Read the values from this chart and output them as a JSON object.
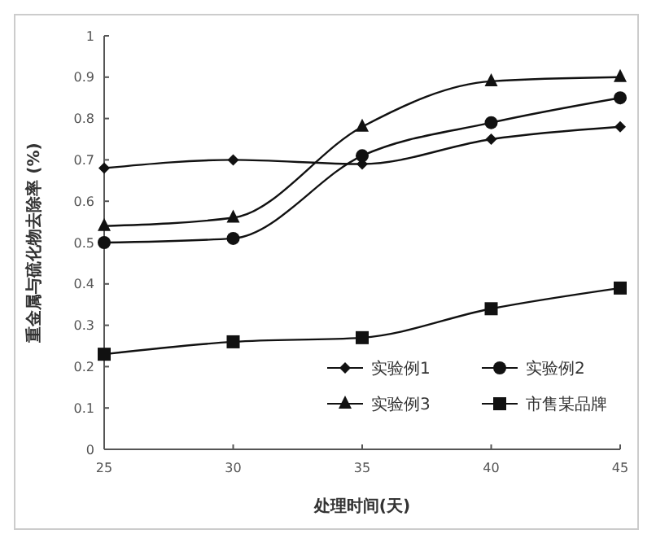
{
  "chart_data": {
    "type": "line",
    "xlabel": "处理时间(天)",
    "ylabel": "重金属与硫化物去除率 (%)",
    "x": [
      25,
      30,
      35,
      40,
      45
    ],
    "series": [
      {
        "name": "实验例1",
        "color": "#111111",
        "marker": "diamond",
        "values": [
          0.68,
          0.7,
          0.69,
          0.75,
          0.78
        ]
      },
      {
        "name": "实验例2",
        "color": "#111111",
        "marker": "circle",
        "values": [
          0.5,
          0.51,
          0.71,
          0.79,
          0.85
        ]
      },
      {
        "name": "实验例3",
        "color": "#111111",
        "marker": "triangle",
        "values": [
          0.54,
          0.56,
          0.78,
          0.89,
          0.9
        ]
      },
      {
        "name": "市售某品牌",
        "color": "#111111",
        "marker": "square",
        "values": [
          0.23,
          0.26,
          0.27,
          0.34,
          0.39
        ]
      }
    ],
    "xlim": [
      25,
      45
    ],
    "xticks": [
      25,
      30,
      35,
      40,
      45
    ],
    "ylim": [
      0,
      1
    ],
    "yticks": [
      0,
      0.1,
      0.2,
      0.3,
      0.4,
      0.5,
      0.6,
      0.7,
      0.8,
      0.9,
      1
    ],
    "grid": false,
    "legend": "bottom right",
    "line_style": "solid"
  }
}
